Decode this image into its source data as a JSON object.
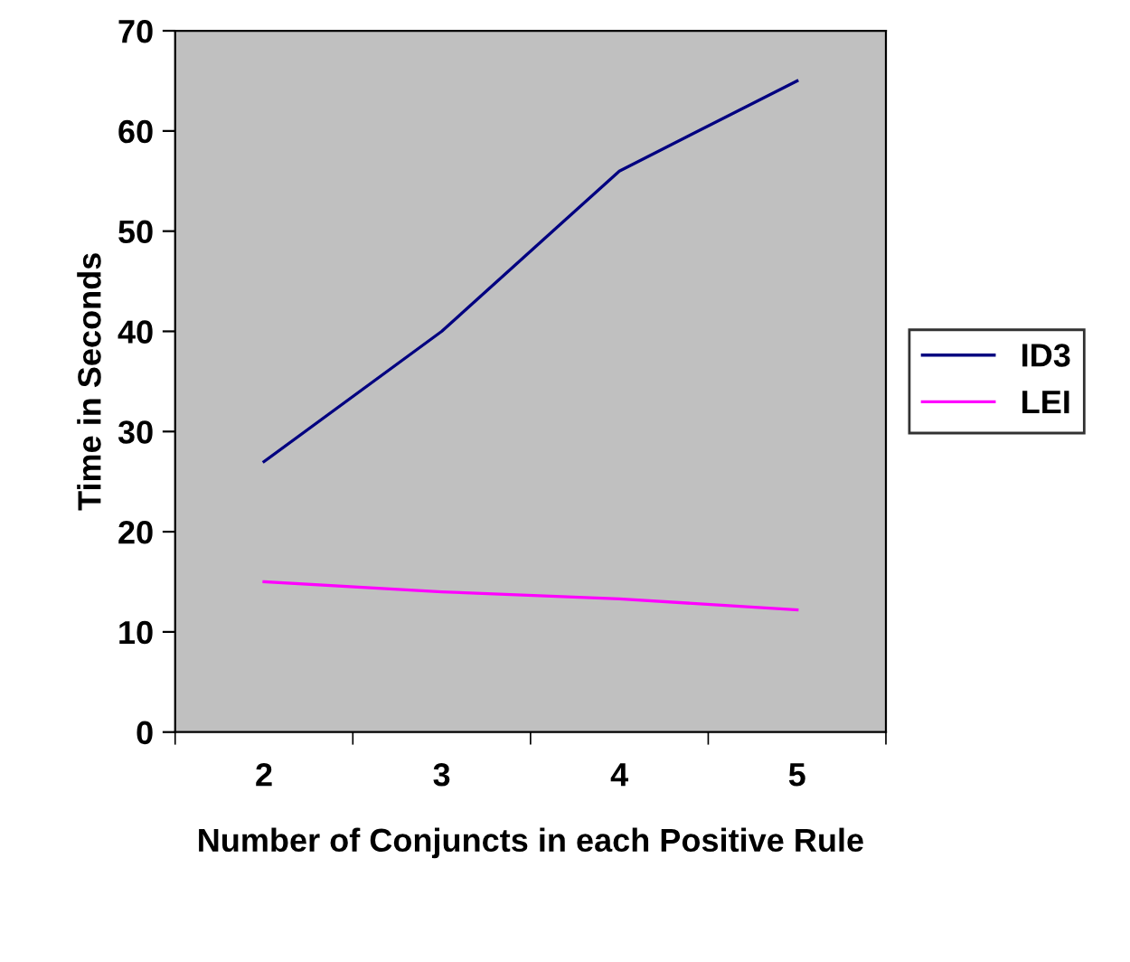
{
  "chart_data": {
    "type": "line",
    "xlabel": "Number of Conjuncts in each Positive Rule",
    "ylabel": "Time in Seconds",
    "categories": [
      "2",
      "3",
      "4",
      "5"
    ],
    "series": [
      {
        "name": "ID3",
        "color": "#000080",
        "values": [
          27,
          40,
          56,
          65
        ]
      },
      {
        "name": "LEI",
        "color": "#ff00ff",
        "values": [
          15,
          14,
          13.3,
          12.2
        ]
      }
    ],
    "ylim": [
      0,
      70
    ],
    "yticks": [
      0,
      10,
      20,
      30,
      40,
      50,
      60,
      70
    ],
    "grid": false,
    "legend": "right",
    "marker": "none",
    "line_style": "solid"
  }
}
